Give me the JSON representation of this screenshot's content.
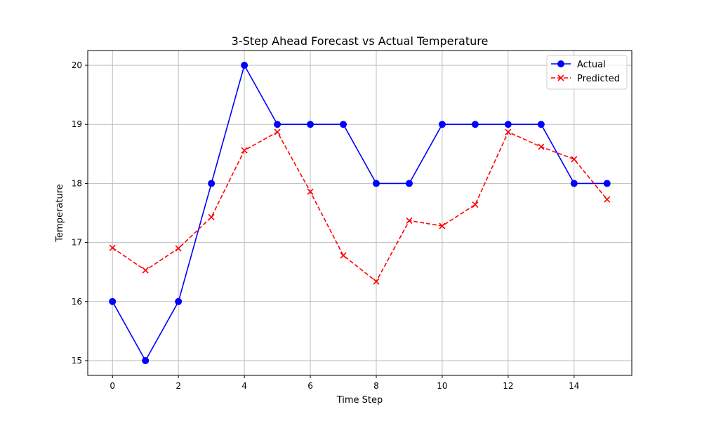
{
  "chart_data": {
    "type": "line",
    "title": "3-Step Ahead Forecast vs Actual Temperature",
    "xlabel": "Time Step",
    "ylabel": "Temperature",
    "x": [
      0,
      1,
      2,
      3,
      4,
      5,
      6,
      7,
      8,
      9,
      10,
      11,
      12,
      13,
      14,
      15
    ],
    "xlim": [
      -0.75,
      15.75
    ],
    "ylim": [
      14.75,
      20.25
    ],
    "xticks": [
      0,
      2,
      4,
      6,
      8,
      10,
      12,
      14
    ],
    "yticks": [
      15,
      16,
      17,
      18,
      19,
      20
    ],
    "grid": true,
    "legend_position": "top-right",
    "series": [
      {
        "name": "Actual",
        "color": "#0000ff",
        "line_style": "solid",
        "marker": "circle",
        "values": [
          16,
          15,
          16,
          18,
          20,
          19,
          19,
          19,
          18,
          18,
          19,
          19,
          19,
          19,
          18,
          18
        ]
      },
      {
        "name": "Predicted",
        "color": "#ff0000",
        "line_style": "dashed",
        "marker": "x",
        "values": [
          16.91,
          16.53,
          16.9,
          17.43,
          18.56,
          18.87,
          17.86,
          16.78,
          16.34,
          17.37,
          17.28,
          17.64,
          18.87,
          18.62,
          18.41,
          17.73
        ]
      }
    ]
  }
}
